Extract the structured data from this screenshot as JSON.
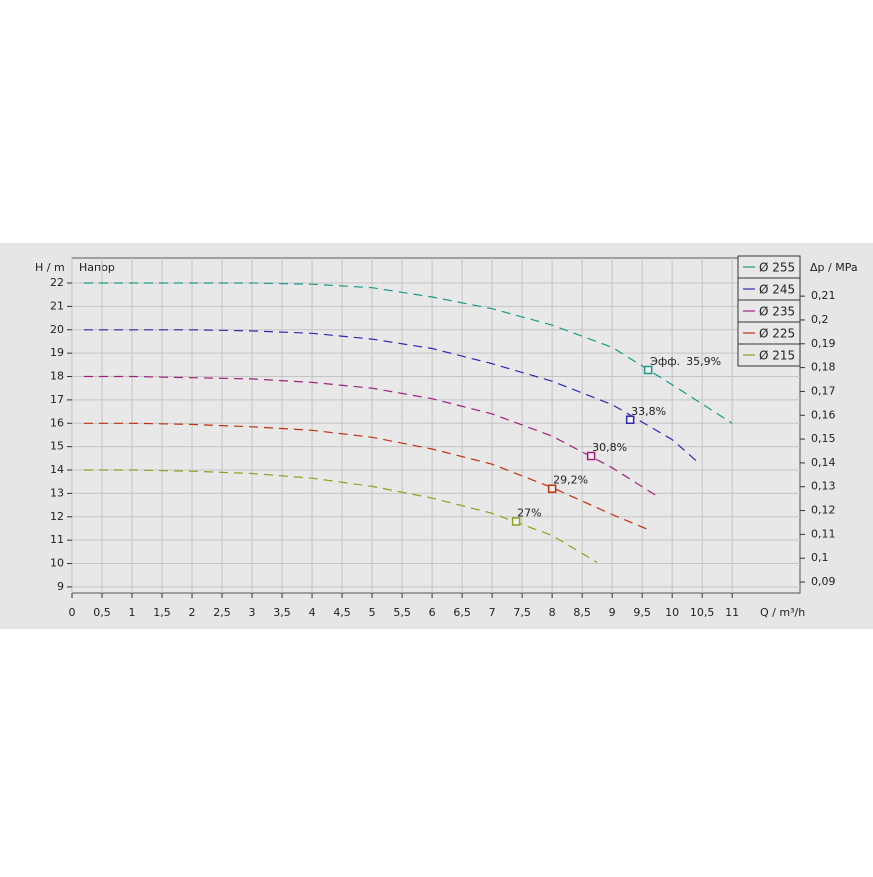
{
  "chart_data": {
    "type": "line",
    "y_label": "H / m",
    "y2_label": "Δp / MPa",
    "x_label": "Q / m³/h",
    "plot_label": "Напор",
    "bep_title": "Эфф.",
    "xlim": [
      0,
      12.13
    ],
    "ylim": [
      8.74,
      23.07
    ],
    "y2lim": [
      0.0854,
      0.226
    ],
    "grid": true,
    "legend": "upper right",
    "xticks": [
      0,
      {
        "value": 0.5,
        "label": "0,5"
      },
      1,
      {
        "value": 1.5,
        "label": "1,5"
      },
      2,
      {
        "value": 2.5,
        "label": "2,5"
      },
      3,
      {
        "value": 3.5,
        "label": "3,5"
      },
      4,
      {
        "value": 4.5,
        "label": "4,5"
      },
      5,
      {
        "value": 5.5,
        "label": "5,5"
      },
      6,
      {
        "value": 6.5,
        "label": "6,5"
      },
      7,
      {
        "value": 7.5,
        "label": "7,5"
      },
      8,
      {
        "value": 8.5,
        "label": "8,5"
      },
      9,
      {
        "value": 9.5,
        "label": "9,5"
      },
      10,
      {
        "value": 10.5,
        "label": "10,5"
      },
      11
    ],
    "yticks": [
      9,
      10,
      11,
      12,
      13,
      14,
      15,
      16,
      17,
      18,
      19,
      20,
      21,
      22
    ],
    "y2ticks": [
      {
        "value": 0.09,
        "label": "0,09"
      },
      {
        "value": 0.1,
        "label": "0,1"
      },
      {
        "value": 0.11,
        "label": "0,11"
      },
      {
        "value": 0.12,
        "label": "0,12"
      },
      {
        "value": 0.13,
        "label": "0,13"
      },
      {
        "value": 0.14,
        "label": "0,14"
      },
      {
        "value": 0.15,
        "label": "0,15"
      },
      {
        "value": 0.16,
        "label": "0,16"
      },
      {
        "value": 0.17,
        "label": "0,17"
      },
      {
        "value": 0.18,
        "label": "0,18"
      },
      {
        "value": 0.19,
        "label": "0,19"
      },
      {
        "value": 0.2,
        "label": "0,2"
      },
      {
        "value": 0.21,
        "label": "0,21"
      }
    ],
    "series": [
      {
        "name": "Ø 255",
        "color": "#1a9a8a",
        "x": [
          0.2,
          1,
          2,
          3,
          4,
          5,
          6,
          7,
          8,
          9,
          10,
          11
        ],
        "values": [
          22,
          22,
          22,
          22,
          21.95,
          21.8,
          21.4,
          20.9,
          20.2,
          19.25,
          17.65,
          16.0
        ],
        "bep_x": 9.6,
        "bep_h": 18.28,
        "bep_label": "35,9%"
      },
      {
        "name": "Ø 245",
        "color": "#2a2ab0",
        "x": [
          0.2,
          1,
          2,
          3,
          4,
          5,
          6,
          7,
          8,
          9,
          10,
          10.4
        ],
        "values": [
          20,
          20,
          20,
          19.95,
          19.85,
          19.6,
          19.2,
          18.55,
          17.8,
          16.8,
          15.3,
          14.4
        ],
        "bep_x": 9.3,
        "bep_h": 16.15,
        "bep_label": "33,8%"
      },
      {
        "name": "Ø 235",
        "color": "#a0207f",
        "x": [
          0.2,
          1,
          2,
          3,
          4,
          5,
          6,
          7,
          8,
          9,
          9.8
        ],
        "values": [
          18,
          18,
          17.95,
          17.9,
          17.75,
          17.5,
          17.05,
          16.4,
          15.45,
          14.1,
          12.8
        ],
        "bep_x": 8.65,
        "bep_h": 14.6,
        "bep_label": "30,8%"
      },
      {
        "name": "Ø 225",
        "color": "#c03010",
        "x": [
          0.2,
          1,
          2,
          3,
          4,
          5,
          6,
          7,
          8,
          9,
          9.6
        ],
        "values": [
          16,
          16,
          15.95,
          15.85,
          15.7,
          15.4,
          14.9,
          14.25,
          13.25,
          12.1,
          11.45
        ],
        "bep_x": 8.0,
        "bep_h": 13.2,
        "bep_label": "29,2%"
      },
      {
        "name": "Ø 215",
        "color": "#90a020",
        "x": [
          0.2,
          1,
          2,
          3,
          4,
          5,
          6,
          7,
          8,
          8.75
        ],
        "values": [
          14,
          14,
          13.95,
          13.85,
          13.65,
          13.3,
          12.8,
          12.15,
          11.2,
          10.05
        ],
        "bep_x": 7.4,
        "bep_h": 11.8,
        "bep_label": "27%"
      }
    ]
  }
}
